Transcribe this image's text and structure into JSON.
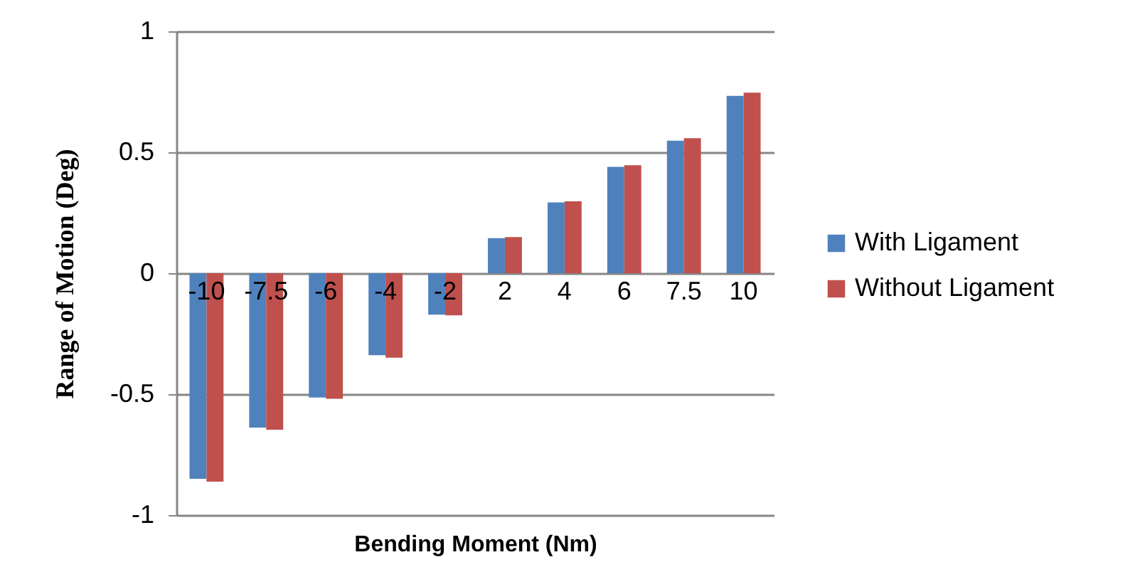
{
  "chart_data": {
    "type": "bar",
    "xlabel": "Bending Moment (Nm)",
    "ylabel": "Range of Motion (Deg)",
    "categories": [
      "-10",
      "-7.5",
      "-6",
      "-4",
      "-2",
      "2",
      "4",
      "6",
      "7.5",
      "10"
    ],
    "series": [
      {
        "name": "With Ligament",
        "color": "#4f81bd",
        "values": [
          -0.85,
          -0.638,
          -0.514,
          -0.339,
          -0.171,
          0.145,
          0.293,
          0.44,
          0.548,
          0.733
        ]
      },
      {
        "name": "Without Ligament",
        "color": "#c0504d",
        "values": [
          -0.862,
          -0.647,
          -0.519,
          -0.349,
          -0.174,
          0.149,
          0.297,
          0.446,
          0.558,
          0.746
        ]
      }
    ],
    "ylim": [
      -1,
      1
    ],
    "yticks": [
      -1,
      -0.5,
      0,
      0.5,
      1
    ],
    "grid": "y",
    "legend": "right"
  }
}
